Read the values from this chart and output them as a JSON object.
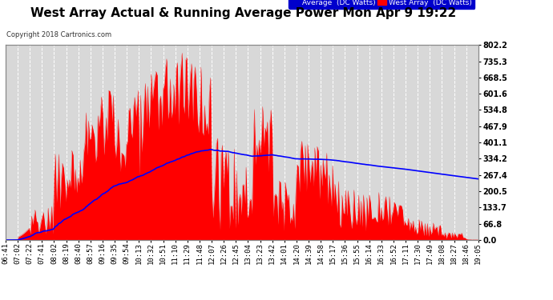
{
  "title": "West Array Actual & Running Average Power Mon Apr 9 19:22",
  "copyright": "Copyright 2018 Cartronics.com",
  "legend_avg": "Average  (DC Watts)",
  "legend_west": "West Array  (DC Watts)",
  "ylabel_right_ticks": [
    0.0,
    66.8,
    133.7,
    200.5,
    267.4,
    334.2,
    401.1,
    467.9,
    534.8,
    601.6,
    668.5,
    735.3,
    802.2
  ],
  "ymax": 802.2,
  "bg_color": "#ffffff",
  "plot_bg_color": "#d8d8d8",
  "bar_color": "#ff0000",
  "avg_line_color": "#0000ff",
  "title_fontsize": 11,
  "tick_fontsize": 6.5,
  "x_labels": [
    "06:41",
    "07:02",
    "07:22",
    "07:41",
    "08:02",
    "08:19",
    "08:40",
    "08:57",
    "09:16",
    "09:35",
    "09:54",
    "10:13",
    "10:32",
    "10:51",
    "11:10",
    "11:29",
    "11:48",
    "12:07",
    "12:26",
    "12:45",
    "13:04",
    "13:23",
    "13:42",
    "14:01",
    "14:20",
    "14:39",
    "14:58",
    "15:17",
    "15:36",
    "15:55",
    "16:14",
    "16:33",
    "16:52",
    "17:11",
    "17:30",
    "17:49",
    "18:08",
    "18:27",
    "18:46",
    "19:05"
  ]
}
